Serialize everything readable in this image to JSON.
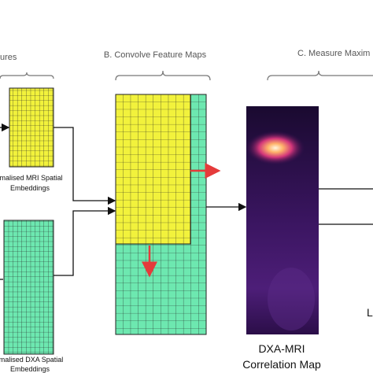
{
  "sections": [
    {
      "label": "ures"
    },
    {
      "label": "B. Convolve Feature Maps"
    },
    {
      "label": "C. Measure Maxim"
    }
  ],
  "embeddings": [
    {
      "line1": "rmalised MRI Spatial",
      "line2": "Embeddings"
    },
    {
      "line1": "rmalised DXA Spatial",
      "line2": "Embeddings"
    }
  ],
  "map": {
    "line1": "DXA-MRI",
    "line2": "Correlation Map"
  },
  "edge_label": "L"
}
